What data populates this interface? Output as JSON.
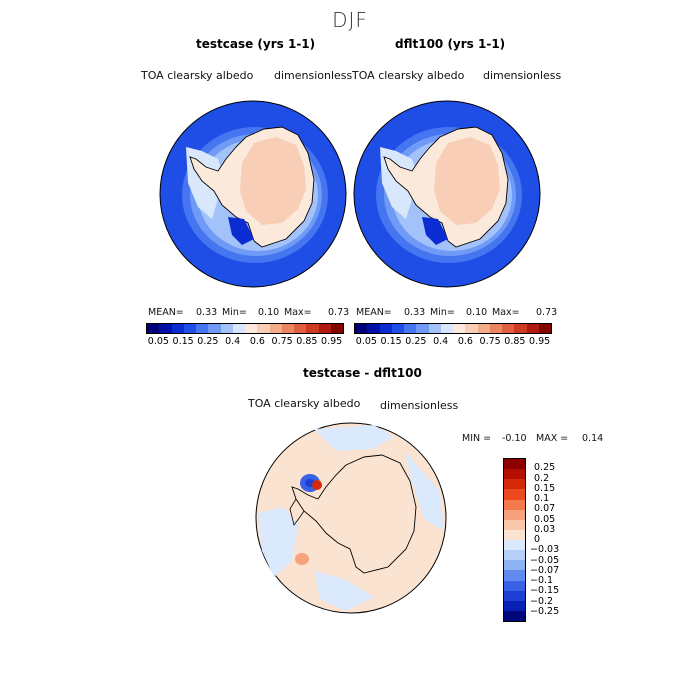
{
  "season": "DJF",
  "panels": [
    {
      "title": "testcase (yrs 1-1)",
      "variable": "TOA clearsky albedo",
      "units": "dimensionless",
      "stats": {
        "mean_label": "MEAN=",
        "mean": "0.33",
        "min_label": "Min=",
        "min": "0.10",
        "max_label": "Max=",
        "max": "0.73"
      }
    },
    {
      "title": "dflt100 (yrs 1-1)",
      "variable": "TOA clearsky albedo",
      "units": "dimensionless",
      "stats": {
        "mean_label": "MEAN=",
        "mean": "0.33",
        "min_label": "Min=",
        "min": "0.10",
        "max_label": "Max=",
        "max": "0.73"
      }
    }
  ],
  "colorbar": {
    "ticks": [
      "0.05",
      "0.15",
      "0.25",
      "0.4",
      "0.6",
      "0.75",
      "0.85",
      "0.95"
    ],
    "colors": [
      "#00007a",
      "#0010a8",
      "#0a2cd0",
      "#1f4ee6",
      "#4575ef",
      "#6f9af5",
      "#a3c2fa",
      "#d8e7fc",
      "#fbe9dc",
      "#f8cfb6",
      "#f3ac88",
      "#ec8660",
      "#e0603e",
      "#cd3a22",
      "#b01a10",
      "#820700"
    ]
  },
  "diff": {
    "title": "testcase - dflt100",
    "variable": "TOA clearsky albedo",
    "units": "dimensionless",
    "min_label": "MIN =",
    "min": "-0.10",
    "max_label": "MAX =",
    "max": "0.14",
    "ticks": [
      "0.25",
      "0.2",
      "0.15",
      "0.1",
      "0.07",
      "0.05",
      "0.03",
      "0",
      "−0.03",
      "−0.05",
      "−0.07",
      "−0.1",
      "−0.15",
      "−0.2",
      "−0.25"
    ],
    "colors": [
      "#8c0000",
      "#b41000",
      "#d42a0a",
      "#ec4a1e",
      "#f47a4e",
      "#f6a27e",
      "#f8c6aa",
      "#fbe3d2",
      "#dbe9fc",
      "#b4d0f8",
      "#8cb2f3",
      "#5f8aef",
      "#3a62e6",
      "#1c3ed4",
      "#0820b4",
      "#00087c"
    ]
  }
}
